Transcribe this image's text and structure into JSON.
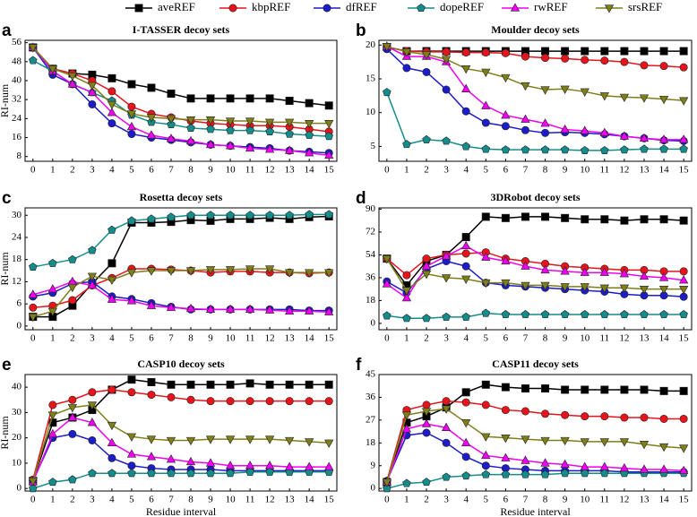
{
  "chart_data": [
    {
      "type": "line",
      "label": "a",
      "title": "I-TASSER decoy sets",
      "ylabel": "RI-num",
      "x": [
        0,
        1,
        2,
        3,
        4,
        5,
        6,
        7,
        8,
        9,
        10,
        11,
        12,
        13,
        14,
        15
      ],
      "xlim": [
        -0.4,
        15.4
      ],
      "xticks": [
        0,
        1,
        2,
        3,
        4,
        5,
        6,
        7,
        8,
        9,
        10,
        11,
        12,
        13,
        14,
        15
      ],
      "ylim": [
        6,
        57
      ],
      "yticks": [
        8,
        16,
        24,
        32,
        40,
        48,
        56
      ],
      "series": [
        {
          "name": "aveREF",
          "color": "#000000",
          "marker": "square",
          "values": [
            54,
            45,
            43,
            42.5,
            41,
            38.5,
            37,
            34.5,
            32.5,
            32.5,
            32.5,
            32.5,
            32.5,
            31.5,
            30.5,
            29.5
          ]
        },
        {
          "name": "kbpREF",
          "color": "#e8141c",
          "marker": "circle",
          "values": [
            54,
            45,
            43,
            40,
            35.5,
            29,
            26,
            24.5,
            23,
            22,
            21.5,
            21,
            21,
            20.5,
            19.5,
            18.5
          ]
        },
        {
          "name": "dfREF",
          "color": "#1c1cc8",
          "marker": "circle",
          "values": [
            54,
            42.5,
            38.5,
            30,
            22,
            17.5,
            16,
            15,
            14,
            13,
            12.5,
            12,
            11.5,
            10.5,
            10,
            9.5
          ]
        },
        {
          "name": "dopeREF",
          "color": "#148c8c",
          "marker": "pentagon",
          "values": [
            48.5,
            44,
            38.5,
            35,
            31.5,
            25.5,
            22.5,
            21.5,
            20,
            19.5,
            19,
            19,
            18.5,
            17.5,
            17,
            16.5
          ]
        },
        {
          "name": "rwREF",
          "color": "#f000f0",
          "marker": "triangle-up",
          "values": [
            54,
            44,
            38.5,
            35,
            26.5,
            20.5,
            17,
            15.5,
            14.5,
            13,
            12.5,
            11.5,
            11,
            10.5,
            9.5,
            8.5
          ]
        },
        {
          "name": "srsREF",
          "color": "#7f7f1a",
          "marker": "triangle-down",
          "values": [
            54,
            45,
            42,
            38,
            30,
            26,
            24.5,
            24,
            23.5,
            23.5,
            23,
            23,
            22.5,
            22.5,
            22,
            22
          ]
        }
      ]
    },
    {
      "type": "line",
      "label": "b",
      "title": "Moulder decoy sets",
      "x": [
        0,
        1,
        2,
        3,
        4,
        5,
        6,
        7,
        8,
        9,
        10,
        11,
        12,
        13,
        14,
        15
      ],
      "xlim": [
        -0.4,
        15.4
      ],
      "xticks": [
        0,
        1,
        2,
        3,
        4,
        5,
        6,
        7,
        8,
        9,
        10,
        11,
        12,
        13,
        14,
        15
      ],
      "ylim": [
        2.8,
        20.7
      ],
      "yticks": [
        5,
        10,
        15,
        20
      ],
      "series": [
        {
          "values": [
            19.7,
            19.1,
            19.1,
            19.1,
            19.1,
            19.1,
            19.1,
            19.1,
            19.1,
            19.1,
            19.1,
            19.1,
            19.1,
            19.1,
            19.1,
            19.1
          ]
        },
        {
          "values": [
            19.7,
            19.1,
            19,
            19,
            18.9,
            18.9,
            18.8,
            18.3,
            18.1,
            18,
            17.8,
            17.7,
            17.5,
            17,
            16.9,
            16.7
          ]
        },
        {
          "values": [
            19.4,
            16.6,
            16,
            13.4,
            10.2,
            8.5,
            8,
            7.4,
            7,
            7.1,
            7,
            6.8,
            6.5,
            6.2,
            5.9,
            5.8
          ]
        },
        {
          "values": [
            13,
            5.3,
            6,
            5.8,
            5,
            4.6,
            4.5,
            4.5,
            4.5,
            4.5,
            4.4,
            4.4,
            4.5,
            4.6,
            4.6,
            4.6
          ]
        },
        {
          "values": [
            19.8,
            18.3,
            18.3,
            17.5,
            13.5,
            11,
            9.6,
            9,
            8.4,
            7.5,
            7.3,
            7,
            6.5,
            6.2,
            6,
            6
          ]
        },
        {
          "values": [
            19.8,
            19,
            18.6,
            17.9,
            16.5,
            16,
            15.2,
            14,
            13.4,
            13.5,
            13.1,
            12.5,
            12.3,
            12.2,
            12,
            11.8
          ]
        }
      ]
    },
    {
      "type": "line",
      "label": "c",
      "title": "Rosetta decoy sets",
      "ylabel": "RI-num",
      "x": [
        0,
        1,
        2,
        3,
        4,
        5,
        6,
        7,
        8,
        9,
        10,
        11,
        12,
        13,
        14,
        15
      ],
      "xlim": [
        -0.4,
        15.4
      ],
      "xticks": [
        0,
        1,
        2,
        3,
        4,
        5,
        6,
        7,
        8,
        9,
        10,
        11,
        12,
        13,
        14,
        15
      ],
      "ylim": [
        -1,
        32
      ],
      "yticks": [
        0,
        6,
        12,
        18,
        24,
        30
      ],
      "series": [
        {
          "values": [
            2.5,
            2.5,
            5.5,
            11.5,
            17,
            28,
            28,
            28.2,
            28.7,
            28.5,
            29,
            29,
            29.3,
            29,
            29.5,
            29.7
          ]
        },
        {
          "values": [
            5,
            5.5,
            7,
            11,
            13,
            15.5,
            15.5,
            15.3,
            15,
            14.5,
            14.8,
            14.8,
            14.5,
            14.5,
            14.3,
            14.5
          ]
        },
        {
          "values": [
            8,
            9,
            11.5,
            12,
            8,
            7.3,
            6.2,
            5.2,
            4.5,
            4.5,
            4.5,
            4.5,
            4.5,
            4.5,
            4.2,
            4.2
          ]
        },
        {
          "values": [
            16,
            17,
            18,
            20.5,
            26,
            28.5,
            29,
            29.5,
            30,
            30,
            30,
            30,
            30,
            30,
            30.2,
            30.2
          ]
        },
        {
          "values": [
            8.5,
            10,
            12,
            11,
            7.2,
            6.8,
            5.5,
            5,
            4.7,
            4.5,
            4.5,
            4.5,
            4.3,
            4,
            4,
            3.8
          ]
        },
        {
          "values": [
            2.5,
            4,
            10.5,
            13.5,
            12.5,
            14.5,
            15,
            15,
            15,
            15.3,
            15.3,
            15.5,
            15.5,
            14.5,
            14.5,
            14.5
          ]
        }
      ]
    },
    {
      "type": "line",
      "label": "d",
      "title": "3DRobot decoy sets",
      "x": [
        0,
        1,
        2,
        3,
        4,
        5,
        6,
        7,
        8,
        9,
        10,
        11,
        12,
        13,
        14,
        15
      ],
      "xlim": [
        -0.4,
        15.4
      ],
      "xticks": [
        0,
        1,
        2,
        3,
        4,
        5,
        6,
        7,
        8,
        9,
        10,
        11,
        12,
        13,
        14,
        15
      ],
      "ylim": [
        -5,
        91
      ],
      "yticks": [
        0,
        18,
        36,
        54,
        72,
        90
      ],
      "series": [
        {
          "values": [
            51,
            30,
            49,
            54,
            68,
            84,
            83,
            84,
            84,
            83,
            82,
            82,
            81,
            82,
            82,
            81
          ]
        },
        {
          "values": [
            51,
            38,
            51,
            54,
            55,
            56,
            51,
            49,
            47,
            45,
            44,
            43,
            42,
            42,
            41,
            41
          ]
        },
        {
          "values": [
            33,
            24,
            43,
            49,
            45,
            32,
            30,
            29,
            28,
            27,
            26,
            25,
            23,
            22,
            22,
            21
          ]
        },
        {
          "values": [
            6,
            4,
            4,
            5,
            5,
            8,
            7,
            7,
            7,
            7,
            7,
            7,
            7,
            7,
            7,
            7
          ]
        },
        {
          "values": [
            31,
            20,
            45,
            53,
            61,
            52,
            49,
            45,
            42,
            41,
            40,
            40,
            39,
            37,
            36,
            34
          ]
        },
        {
          "values": [
            51,
            26,
            39,
            36,
            35,
            32,
            32,
            30,
            30,
            29,
            29,
            28,
            28,
            27,
            27,
            27
          ]
        }
      ]
    },
    {
      "type": "line",
      "label": "e",
      "title": "CASP10 decoy sets",
      "ylabel": "RI-num",
      "xlabel": "Residue interval",
      "x": [
        0,
        1,
        2,
        3,
        4,
        5,
        6,
        7,
        8,
        9,
        10,
        11,
        12,
        13,
        14,
        15
      ],
      "xlim": [
        -0.4,
        15.4
      ],
      "xticks": [
        0,
        1,
        2,
        3,
        4,
        5,
        6,
        7,
        8,
        9,
        10,
        11,
        12,
        13,
        14,
        15
      ],
      "ylim": [
        -1,
        45
      ],
      "yticks": [
        0,
        10,
        20,
        30,
        40
      ],
      "series": [
        {
          "values": [
            3,
            26,
            28,
            31,
            39,
            43,
            42,
            41,
            41,
            41,
            41,
            41.5,
            41,
            41,
            41,
            41
          ]
        },
        {
          "values": [
            3.5,
            33,
            35,
            38,
            39,
            38,
            37,
            36,
            35,
            34.5,
            34.5,
            34.5,
            34.5,
            34.5,
            34.5,
            34.5
          ]
        },
        {
          "values": [
            3,
            20,
            21.5,
            19,
            12,
            9,
            8,
            7.5,
            7.5,
            7.5,
            7,
            7,
            7,
            7,
            7,
            7
          ]
        },
        {
          "values": [
            0,
            2.5,
            3.5,
            6,
            6,
            6,
            6,
            6,
            6,
            6,
            6,
            6.5,
            6.5,
            6.5,
            6.5,
            6.5
          ]
        },
        {
          "values": [
            2.5,
            21.5,
            28,
            26,
            18,
            13.5,
            12.5,
            11.5,
            10.5,
            10,
            9,
            9,
            9,
            8.5,
            8.5,
            8.5
          ]
        },
        {
          "values": [
            3,
            29,
            32,
            33,
            25,
            20.5,
            19.5,
            19,
            19,
            19.5,
            19.5,
            19.5,
            19.5,
            19,
            18.5,
            18
          ]
        }
      ]
    },
    {
      "type": "line",
      "label": "f",
      "title": "CASP11 decoy sets",
      "xlabel": "Residue interval",
      "x": [
        0,
        1,
        2,
        3,
        4,
        5,
        6,
        7,
        8,
        9,
        10,
        11,
        12,
        13,
        14,
        15
      ],
      "xlim": [
        -0.4,
        15.4
      ],
      "xticks": [
        0,
        1,
        2,
        3,
        4,
        5,
        6,
        7,
        8,
        9,
        10,
        11,
        12,
        13,
        14,
        15
      ],
      "ylim": [
        -1,
        45
      ],
      "yticks": [
        0,
        9,
        18,
        27,
        36,
        45
      ],
      "series": [
        {
          "values": [
            2.5,
            26,
            28.5,
            32,
            38,
            41,
            40,
            39.5,
            39.5,
            39,
            39,
            39,
            39,
            39,
            38.5,
            38.5
          ]
        },
        {
          "values": [
            3,
            31,
            33,
            34.5,
            34,
            33,
            31,
            30.5,
            29.5,
            29,
            28.5,
            28.5,
            28,
            28,
            27.5,
            27.5
          ]
        },
        {
          "values": [
            3,
            21,
            22,
            18,
            12.5,
            9,
            8,
            7.5,
            7,
            7,
            7,
            7,
            6.5,
            6.5,
            6.5,
            6.5
          ]
        },
        {
          "values": [
            0,
            2,
            2.5,
            4.5,
            5,
            5.5,
            5.5,
            5.5,
            5.5,
            6,
            6,
            6,
            6,
            6,
            6,
            6
          ]
        },
        {
          "values": [
            2.5,
            23.5,
            25.5,
            24,
            18,
            13,
            12,
            11,
            10,
            9.5,
            8.5,
            8.5,
            8,
            7.5,
            7.5,
            7
          ]
        },
        {
          "values": [
            2.5,
            29,
            30.5,
            31.5,
            26,
            20.5,
            20,
            19.5,
            19,
            19,
            18.5,
            18.5,
            18.5,
            17.5,
            16.5,
            16
          ]
        }
      ]
    }
  ]
}
